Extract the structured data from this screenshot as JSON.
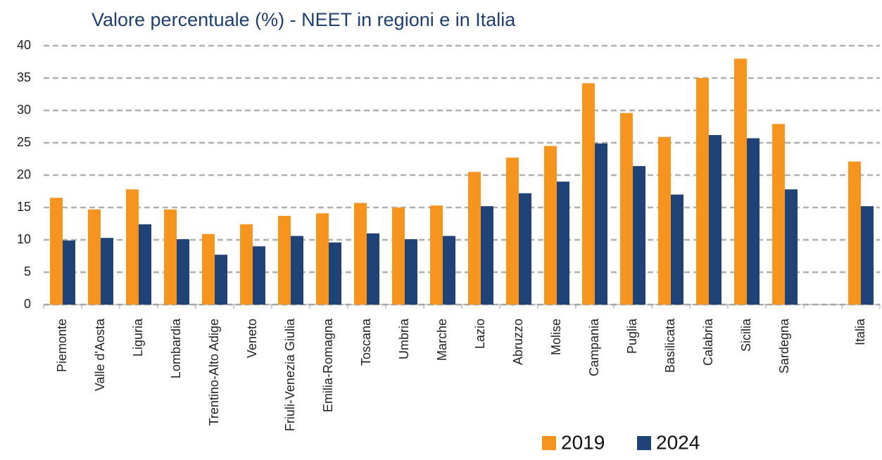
{
  "chart_data": {
    "type": "bar",
    "title": "Valore percentuale (%) - NEET in regioni e in Italia",
    "categories": [
      "Piemonte",
      "Valle d'Aosta",
      "Liguria",
      "Lombardia",
      "Trentino-Alto Adige",
      "Veneto",
      "Friuli-Venezia Giulia",
      "Emilia-Romagna",
      "Toscana",
      "Umbria",
      "Marche",
      "Lazio",
      "Abruzzo",
      "Molise",
      "Campania",
      "Puglia",
      "Basilicata",
      "Calabria",
      "Sicilia",
      "Sardegna",
      null,
      "Italia"
    ],
    "series": [
      {
        "name": "2019",
        "color": "#f7941d",
        "values": [
          16.5,
          14.7,
          17.8,
          14.7,
          10.9,
          12.4,
          13.7,
          14.1,
          15.7,
          15.0,
          15.3,
          20.5,
          22.7,
          24.5,
          34.2,
          29.6,
          25.9,
          35.0,
          38.0,
          27.9,
          null,
          22.1
        ]
      },
      {
        "name": "2024",
        "color": "#1f4277",
        "values": [
          9.9,
          10.3,
          12.4,
          10.1,
          7.7,
          9.0,
          10.6,
          9.6,
          11.0,
          10.1,
          10.6,
          15.2,
          17.2,
          19.0,
          24.9,
          21.4,
          17.0,
          26.2,
          25.7,
          17.8,
          null,
          15.2
        ]
      }
    ],
    "ylim": [
      0,
      40
    ],
    "yticks": [
      0,
      5,
      10,
      15,
      20,
      25,
      30,
      35,
      40
    ],
    "grid": true,
    "legend": "bottom"
  }
}
